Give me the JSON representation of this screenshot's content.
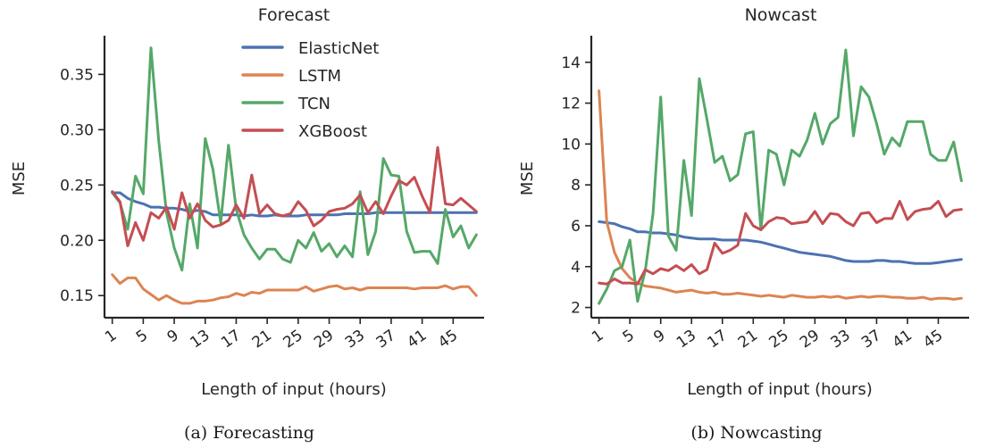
{
  "figures": [
    {
      "caption": "(a) Forecasting",
      "chart_data": {
        "type": "line",
        "title": "Forecast",
        "xlabel": "Length of input (hours)",
        "ylabel": "MSE",
        "x_ticks": [
          1,
          5,
          9,
          13,
          17,
          21,
          25,
          29,
          33,
          37,
          41,
          45
        ],
        "x_tick_labels": [
          "1",
          "5",
          "9",
          "13",
          "17",
          "21",
          "25",
          "29",
          "33",
          "37",
          "41",
          "45"
        ],
        "xlim": [
          0,
          49
        ],
        "y_ticks": [
          0.15,
          0.2,
          0.25,
          0.3,
          0.35
        ],
        "y_tick_labels": [
          "0.15",
          "0.20",
          "0.25",
          "0.30",
          "0.35"
        ],
        "ylim": [
          0.13,
          0.385
        ],
        "grid": false,
        "legend": "top-center",
        "x": [
          1,
          2,
          3,
          4,
          5,
          6,
          7,
          8,
          9,
          10,
          11,
          12,
          13,
          14,
          15,
          16,
          17,
          18,
          19,
          20,
          21,
          22,
          23,
          24,
          25,
          26,
          27,
          28,
          29,
          30,
          31,
          32,
          33,
          34,
          35,
          36,
          37,
          38,
          39,
          40,
          41,
          42,
          43,
          44,
          45,
          46,
          47,
          48
        ],
        "series": [
          {
            "name": "ElasticNet",
            "color": "#4c72b0",
            "values": [
              0.243,
              0.243,
              0.238,
              0.235,
              0.233,
              0.23,
              0.23,
              0.229,
              0.229,
              0.228,
              0.226,
              0.227,
              0.226,
              0.223,
              0.223,
              0.223,
              0.223,
              0.222,
              0.223,
              0.222,
              0.222,
              0.223,
              0.222,
              0.222,
              0.222,
              0.223,
              0.223,
              0.223,
              0.223,
              0.223,
              0.224,
              0.224,
              0.224,
              0.224,
              0.225,
              0.225,
              0.225,
              0.225,
              0.225,
              0.225,
              0.225,
              0.225,
              0.225,
              0.225,
              0.225,
              0.225,
              0.225,
              0.225
            ]
          },
          {
            "name": "LSTM",
            "color": "#dd8452",
            "values": [
              0.169,
              0.161,
              0.166,
              0.166,
              0.156,
              0.151,
              0.146,
              0.15,
              0.146,
              0.143,
              0.143,
              0.145,
              0.145,
              0.146,
              0.148,
              0.149,
              0.152,
              0.15,
              0.153,
              0.152,
              0.155,
              0.155,
              0.155,
              0.155,
              0.155,
              0.158,
              0.154,
              0.156,
              0.158,
              0.159,
              0.156,
              0.157,
              0.155,
              0.157,
              0.157,
              0.157,
              0.157,
              0.157,
              0.157,
              0.156,
              0.157,
              0.157,
              0.157,
              0.159,
              0.156,
              0.158,
              0.158,
              0.15
            ]
          },
          {
            "name": "TCN",
            "color": "#55a868",
            "values": [
              0.243,
              0.234,
              0.21,
              0.258,
              0.242,
              0.374,
              0.29,
              0.225,
              0.193,
              0.173,
              0.233,
              0.193,
              0.292,
              0.264,
              0.216,
              0.286,
              0.228,
              0.205,
              0.193,
              0.183,
              0.192,
              0.192,
              0.183,
              0.18,
              0.2,
              0.193,
              0.207,
              0.19,
              0.197,
              0.185,
              0.195,
              0.185,
              0.244,
              0.187,
              0.208,
              0.274,
              0.259,
              0.258,
              0.208,
              0.189,
              0.19,
              0.19,
              0.179,
              0.228,
              0.203,
              0.213,
              0.193,
              0.205
            ]
          },
          {
            "name": "XGBoost",
            "color": "#c44e52",
            "values": [
              0.244,
              0.235,
              0.195,
              0.216,
              0.2,
              0.225,
              0.22,
              0.23,
              0.21,
              0.243,
              0.22,
              0.233,
              0.218,
              0.212,
              0.214,
              0.218,
              0.232,
              0.22,
              0.259,
              0.224,
              0.232,
              0.224,
              0.222,
              0.224,
              0.235,
              0.227,
              0.213,
              0.218,
              0.226,
              0.228,
              0.229,
              0.233,
              0.241,
              0.225,
              0.235,
              0.224,
              0.24,
              0.254,
              0.25,
              0.257,
              0.24,
              0.225,
              0.284,
              0.233,
              0.232,
              0.238,
              0.232,
              0.226
            ]
          }
        ]
      }
    },
    {
      "caption": "(b) Nowcasting",
      "chart_data": {
        "type": "line",
        "title": "Nowcast",
        "xlabel": "Length of input (hours)",
        "ylabel": "MSE",
        "x_ticks": [
          1,
          5,
          9,
          13,
          17,
          21,
          25,
          29,
          33,
          37,
          41,
          45
        ],
        "x_tick_labels": [
          "1",
          "5",
          "9",
          "13",
          "17",
          "21",
          "25",
          "29",
          "33",
          "37",
          "41",
          "45"
        ],
        "xlim": [
          0,
          49
        ],
        "y_ticks": [
          2,
          4,
          6,
          8,
          10,
          12,
          14
        ],
        "y_tick_labels": [
          "2",
          "4",
          "6",
          "8",
          "10",
          "12",
          "14"
        ],
        "ylim": [
          1.5,
          15.3
        ],
        "grid": false,
        "legend": "none",
        "x": [
          1,
          2,
          3,
          4,
          5,
          6,
          7,
          8,
          9,
          10,
          11,
          12,
          13,
          14,
          15,
          16,
          17,
          18,
          19,
          20,
          21,
          22,
          23,
          24,
          25,
          26,
          27,
          28,
          29,
          30,
          31,
          32,
          33,
          34,
          35,
          36,
          37,
          38,
          39,
          40,
          41,
          42,
          43,
          44,
          45,
          46,
          47,
          48
        ],
        "series": [
          {
            "name": "ElasticNet",
            "color": "#4c72b0",
            "values": [
              6.2,
              6.15,
              6.1,
              5.95,
              5.85,
              5.7,
              5.7,
              5.65,
              5.65,
              5.6,
              5.55,
              5.45,
              5.4,
              5.35,
              5.35,
              5.35,
              5.3,
              5.3,
              5.3,
              5.3,
              5.25,
              5.2,
              5.1,
              5.0,
              4.9,
              4.8,
              4.7,
              4.65,
              4.6,
              4.55,
              4.5,
              4.4,
              4.3,
              4.25,
              4.25,
              4.25,
              4.3,
              4.3,
              4.25,
              4.25,
              4.2,
              4.15,
              4.15,
              4.15,
              4.2,
              4.25,
              4.3,
              4.35
            ]
          },
          {
            "name": "LSTM",
            "color": "#dd8452",
            "values": [
              12.6,
              6.2,
              4.7,
              3.9,
              3.45,
              3.2,
              3.05,
              3.0,
              2.95,
              2.85,
              2.75,
              2.8,
              2.85,
              2.75,
              2.7,
              2.75,
              2.65,
              2.65,
              2.7,
              2.65,
              2.6,
              2.55,
              2.6,
              2.55,
              2.5,
              2.6,
              2.55,
              2.5,
              2.5,
              2.55,
              2.5,
              2.55,
              2.45,
              2.5,
              2.55,
              2.5,
              2.55,
              2.55,
              2.5,
              2.5,
              2.45,
              2.45,
              2.5,
              2.4,
              2.45,
              2.45,
              2.4,
              2.45
            ]
          },
          {
            "name": "TCN",
            "color": "#55a868",
            "values": [
              2.2,
              2.9,
              3.8,
              4.0,
              5.3,
              2.3,
              3.8,
              6.6,
              12.3,
              5.5,
              4.8,
              9.2,
              6.5,
              13.2,
              11.2,
              9.1,
              9.4,
              8.2,
              8.5,
              10.5,
              10.6,
              5.8,
              9.7,
              9.5,
              8.0,
              9.7,
              9.4,
              10.2,
              11.5,
              10.0,
              11.0,
              11.3,
              14.6,
              10.4,
              12.8,
              12.3,
              11.0,
              9.5,
              10.3,
              9.9,
              11.1,
              11.1,
              11.1,
              9.5,
              9.2,
              9.2,
              10.1,
              8.2
            ]
          },
          {
            "name": "XGBoost",
            "color": "#c44e52",
            "values": [
              3.2,
              3.15,
              3.4,
              3.2,
              3.2,
              3.15,
              3.85,
              3.65,
              3.9,
              3.8,
              4.05,
              3.8,
              4.1,
              3.65,
              3.85,
              5.15,
              4.65,
              4.8,
              5.05,
              6.6,
              6.0,
              5.8,
              6.2,
              6.4,
              6.35,
              6.1,
              6.15,
              6.2,
              6.7,
              6.1,
              6.6,
              6.55,
              6.2,
              6.0,
              6.6,
              6.65,
              6.15,
              6.35,
              6.35,
              7.2,
              6.3,
              6.7,
              6.8,
              6.85,
              7.2,
              6.45,
              6.75,
              6.8
            ]
          }
        ]
      }
    }
  ]
}
